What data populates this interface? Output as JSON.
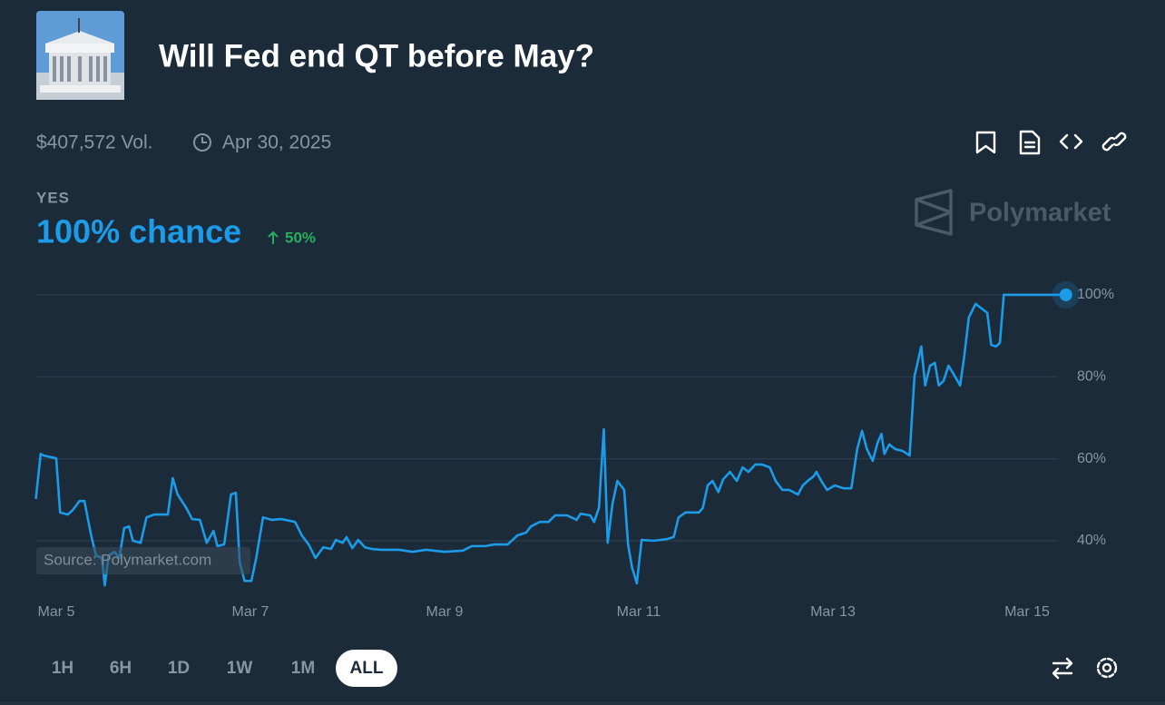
{
  "header": {
    "title": "Will Fed end QT before May?",
    "volume": "$407,572 Vol.",
    "end_date": "Apr 30, 2025"
  },
  "outcome": {
    "label": "YES",
    "chance": "100% chance",
    "change": "50%"
  },
  "brand": "Polymarket",
  "time_ranges": [
    "1H",
    "6H",
    "1D",
    "1W",
    "1M",
    "ALL"
  ],
  "chart_data": {
    "type": "line",
    "color": "#1b9be8",
    "source": "Source: Polymarket.com",
    "grid": true,
    "xlim": [
      4.79,
      15.4
    ],
    "xticks": [
      {
        "value": 5,
        "label": "Mar 5"
      },
      {
        "value": 7,
        "label": "Mar 7"
      },
      {
        "value": 9,
        "label": "Mar 9"
      },
      {
        "value": 11,
        "label": "Mar 11"
      },
      {
        "value": 13,
        "label": "Mar 13"
      },
      {
        "value": 15,
        "label": "Mar 15"
      }
    ],
    "ylim": [
      28,
      104
    ],
    "yticks": [
      {
        "value": 40,
        "label": "40%"
      },
      {
        "value": 60,
        "label": "60%"
      },
      {
        "value": 80,
        "label": "80%"
      },
      {
        "value": 100,
        "label": "100%"
      }
    ],
    "x": [
      4.79,
      4.84,
      4.87,
      5.0,
      5.04,
      5.12,
      5.17,
      5.24,
      5.29,
      5.36,
      5.41,
      5.47,
      5.5,
      5.54,
      5.6,
      5.65,
      5.7,
      5.75,
      5.79,
      5.87,
      5.93,
      6.01,
      6.15,
      6.2,
      6.25,
      6.34,
      6.4,
      6.48,
      6.55,
      6.62,
      6.66,
      6.73,
      6.8,
      6.85,
      6.89,
      6.94,
      7.01,
      7.06,
      7.13,
      7.22,
      7.32,
      7.46,
      7.53,
      7.6,
      7.67,
      7.75,
      7.83,
      7.88,
      7.95,
      7.99,
      8.05,
      8.11,
      8.18,
      8.25,
      8.35,
      8.53,
      8.67,
      8.81,
      9.0,
      9.19,
      9.28,
      9.42,
      9.51,
      9.65,
      9.75,
      9.84,
      9.89,
      9.98,
      10.07,
      10.14,
      10.26,
      10.36,
      10.4,
      10.5,
      10.54,
      10.59,
      10.64,
      10.68,
      10.73,
      10.78,
      10.85,
      10.89,
      10.93,
      10.98,
      11.03,
      11.15,
      11.29,
      11.36,
      11.41,
      11.48,
      11.62,
      11.66,
      11.71,
      11.76,
      11.82,
      11.87,
      11.94,
      12.01,
      12.07,
      12.13,
      12.2,
      12.27,
      12.35,
      12.41,
      12.48,
      12.55,
      12.64,
      12.69,
      12.74,
      12.8,
      12.83,
      12.88,
      12.94,
      13.02,
      13.11,
      13.19,
      13.25,
      13.3,
      13.35,
      13.41,
      13.46,
      13.5,
      13.53,
      13.58,
      13.64,
      13.72,
      13.79,
      13.84,
      13.91,
      13.95,
      14.0,
      14.05,
      14.09,
      14.14,
      14.19,
      14.23,
      14.31,
      14.35,
      14.4,
      14.47,
      14.53,
      14.59,
      14.63,
      14.68,
      14.72,
      14.76,
      14.98,
      15.4
    ],
    "values": [
      50.2,
      61.2,
      60.8,
      60.1,
      46.9,
      46.4,
      47.5,
      49.7,
      49.7,
      41.3,
      36.4,
      35.8,
      29.1,
      36.4,
      37.3,
      35.8,
      43.1,
      43.5,
      40.0,
      39.5,
      45.7,
      46.4,
      46.4,
      55.3,
      51.3,
      48.0,
      45.3,
      45.1,
      39.5,
      42.4,
      38.7,
      39.1,
      51.3,
      51.7,
      34.7,
      30.2,
      30.2,
      35.8,
      45.7,
      45.1,
      45.3,
      44.6,
      41.3,
      39.1,
      35.8,
      38.4,
      38.0,
      40.2,
      39.5,
      40.9,
      38.2,
      40.2,
      38.4,
      38.0,
      37.8,
      37.8,
      37.3,
      37.8,
      37.3,
      37.6,
      38.7,
      38.7,
      39.1,
      39.1,
      41.3,
      42.0,
      43.5,
      44.6,
      44.6,
      46.2,
      46.2,
      45.1,
      46.6,
      46.2,
      44.6,
      48.0,
      67.2,
      39.5,
      49.1,
      54.6,
      52.4,
      39.1,
      33.6,
      29.6,
      40.2,
      40.0,
      40.4,
      40.9,
      45.7,
      46.9,
      46.9,
      48.0,
      53.5,
      54.6,
      51.9,
      55.0,
      56.8,
      54.6,
      57.9,
      56.8,
      58.6,
      58.6,
      57.9,
      54.6,
      52.4,
      52.4,
      51.3,
      53.5,
      54.6,
      55.7,
      56.8,
      54.6,
      52.4,
      53.5,
      52.8,
      52.8,
      62.4,
      66.8,
      62.4,
      59.5,
      63.9,
      66.1,
      61.2,
      63.5,
      62.4,
      61.9,
      60.8,
      80.1,
      87.4,
      77.9,
      82.7,
      83.4,
      77.9,
      79.0,
      82.7,
      81.2,
      77.9,
      84.5,
      94.5,
      97.8,
      96.7,
      95.6,
      87.8,
      87.4,
      88.3,
      100,
      100,
      100
    ]
  }
}
